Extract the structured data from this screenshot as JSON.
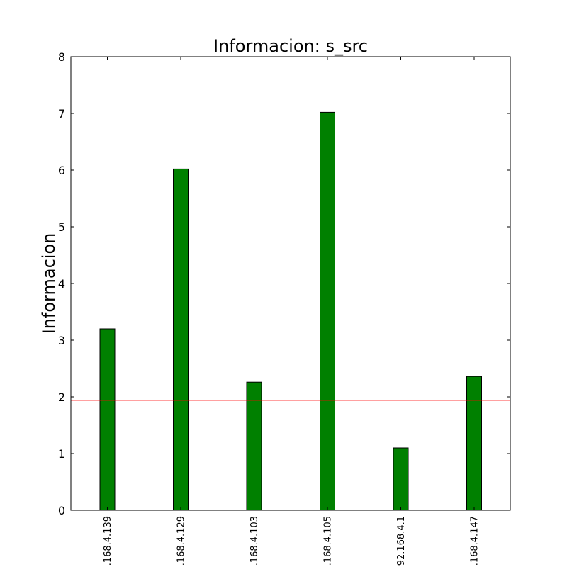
{
  "chart_data": {
    "type": "bar",
    "title": "Informacion: s_src",
    "xlabel": "",
    "ylabel": "Informacion",
    "categories": [
      ".168.4.139",
      ".168.4.129",
      ".168.4.103",
      ".168.4.105",
      "92.168.4.1",
      ".168.4.147"
    ],
    "values": [
      3.2,
      6.02,
      2.26,
      7.02,
      1.1,
      2.36
    ],
    "ylim": [
      0,
      8
    ],
    "yticks": [
      0,
      1,
      2,
      3,
      4,
      5,
      6,
      7,
      8
    ],
    "reference_line": 1.94,
    "grid": false,
    "colors": {
      "bar_fill": "#008000",
      "bar_edge": "#000000",
      "reference_line": "#ff0000",
      "axes": "#000000"
    }
  }
}
